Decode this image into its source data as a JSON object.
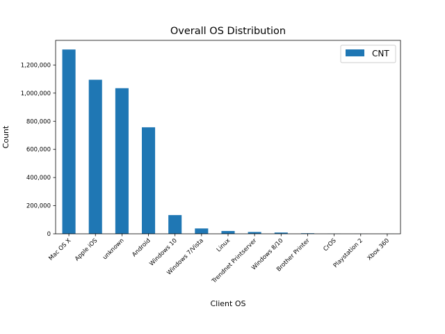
{
  "chart_data": {
    "type": "bar",
    "title": "Overall OS Distribution",
    "xlabel": "Client OS",
    "ylabel": "Count",
    "categories": [
      "Mac OS X",
      "Apple iOS",
      "unknown",
      "Android",
      "Windows 10",
      "Windows 7/Vista",
      "Linux",
      "Trendnet Printserver",
      "Windows 8/10",
      "Brother Printer",
      "CrOS",
      "Playstation 2",
      "Xbox 360"
    ],
    "series": [
      {
        "name": "CNT",
        "color": "#1f77b4",
        "values": [
          1310000,
          1095000,
          1035000,
          757000,
          133000,
          38000,
          20000,
          13000,
          9000,
          4000,
          1000,
          500,
          300
        ]
      }
    ],
    "ylim": [
      0,
      1375000
    ],
    "yticks": [
      0,
      200000,
      400000,
      600000,
      800000,
      1000000,
      1200000
    ],
    "ytick_labels": [
      "0",
      "200,000",
      "400,000",
      "600,000",
      "800,000",
      "1,000,000",
      "1,200,000"
    ],
    "legend_position": "upper right",
    "grid": false
  }
}
